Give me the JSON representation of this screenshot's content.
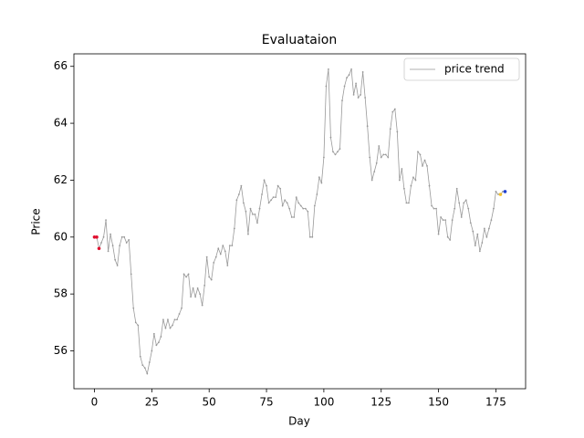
{
  "chart_data": {
    "type": "line",
    "title": "Evaluataion",
    "x_label": "Day",
    "y_label": "Price",
    "x": [
      0,
      1,
      2,
      3,
      4,
      5,
      6,
      7,
      8,
      9,
      10,
      11,
      12,
      13,
      14,
      15,
      16,
      17,
      18,
      19,
      20,
      21,
      22,
      23,
      24,
      25,
      26,
      27,
      28,
      29,
      30,
      31,
      32,
      33,
      34,
      35,
      36,
      37,
      38,
      39,
      40,
      41,
      42,
      43,
      44,
      45,
      46,
      47,
      48,
      49,
      50,
      51,
      52,
      53,
      54,
      55,
      56,
      57,
      58,
      59,
      60,
      61,
      62,
      63,
      64,
      65,
      66,
      67,
      68,
      69,
      70,
      71,
      72,
      73,
      74,
      75,
      76,
      77,
      78,
      79,
      80,
      81,
      82,
      83,
      84,
      85,
      86,
      87,
      88,
      89,
      90,
      91,
      92,
      93,
      94,
      95,
      96,
      97,
      98,
      99,
      100,
      101,
      102,
      103,
      104,
      105,
      106,
      107,
      108,
      109,
      110,
      111,
      112,
      113,
      114,
      115,
      116,
      117,
      118,
      119,
      120,
      121,
      122,
      123,
      124,
      125,
      126,
      127,
      128,
      129,
      130,
      131,
      132,
      133,
      134,
      135,
      136,
      137,
      138,
      139,
      140,
      141,
      142,
      143,
      144,
      145,
      146,
      147,
      148,
      149,
      150,
      151,
      152,
      153,
      154,
      155,
      156,
      157,
      158,
      159,
      160,
      161,
      162,
      163,
      164,
      165,
      166,
      167,
      168,
      169,
      170,
      171,
      172,
      173,
      174,
      175,
      176,
      177,
      178,
      179
    ],
    "series": [
      {
        "name": "price trend",
        "color": "#999999",
        "values": [
          60.0,
          60.0,
          59.6,
          59.8,
          60.0,
          60.6,
          59.5,
          60.1,
          59.7,
          59.2,
          59.0,
          59.7,
          60.0,
          60.0,
          59.8,
          59.9,
          58.7,
          57.5,
          57.0,
          56.9,
          55.8,
          55.5,
          55.4,
          55.2,
          55.6,
          56.0,
          56.6,
          56.2,
          56.3,
          56.5,
          57.1,
          56.8,
          57.1,
          56.8,
          56.9,
          57.1,
          57.1,
          57.3,
          57.5,
          58.7,
          58.6,
          58.7,
          57.9,
          58.2,
          57.9,
          58.2,
          58.0,
          57.6,
          58.3,
          59.3,
          58.6,
          58.5,
          59.1,
          59.3,
          59.6,
          59.4,
          59.7,
          59.5,
          59.0,
          59.7,
          59.7,
          60.3,
          61.3,
          61.5,
          61.8,
          61.2,
          60.9,
          60.1,
          61.0,
          60.8,
          60.8,
          60.5,
          61.0,
          61.5,
          62.0,
          61.8,
          61.2,
          61.3,
          61.4,
          61.4,
          61.8,
          61.7,
          61.1,
          61.3,
          61.2,
          61.0,
          60.7,
          60.7,
          61.4,
          61.2,
          61.1,
          61.0,
          61.0,
          60.9,
          60.0,
          60.0,
          61.1,
          61.5,
          62.1,
          61.9,
          62.8,
          65.3,
          65.9,
          63.5,
          63.0,
          62.9,
          63.0,
          63.1,
          64.8,
          65.3,
          65.6,
          65.7,
          65.9,
          65.0,
          65.4,
          64.9,
          65.0,
          65.8,
          64.9,
          63.9,
          62.8,
          62.0,
          62.3,
          62.6,
          63.2,
          62.8,
          62.9,
          62.9,
          62.8,
          63.8,
          64.4,
          64.5,
          63.7,
          62.0,
          62.4,
          61.7,
          61.2,
          61.2,
          61.8,
          62.1,
          62.0,
          63.0,
          62.9,
          62.5,
          62.7,
          62.5,
          61.8,
          61.1,
          61.0,
          61.0,
          60.1,
          60.7,
          60.6,
          60.6,
          60.0,
          59.9,
          60.6,
          61.0,
          61.7,
          61.2,
          60.7,
          61.2,
          61.3,
          61.0,
          60.5,
          60.2,
          59.7,
          60.1,
          59.5,
          59.8,
          60.3,
          60.0,
          60.3,
          60.6,
          61.0,
          61.6,
          61.5,
          61.5,
          61.6,
          61.6
        ]
      }
    ],
    "highlights": [
      {
        "index": 0,
        "color": "#e0102f"
      },
      {
        "index": 1,
        "color": "#e0102f"
      },
      {
        "index": 2,
        "color": "#e0102f"
      },
      {
        "index": 177,
        "color": "#f2c12e"
      },
      {
        "index": 179,
        "color": "#2040d0"
      }
    ],
    "xlim": [
      -8.95,
      187.95
    ],
    "ylim": [
      54.67,
      66.44
    ],
    "xticks": [
      0,
      25,
      50,
      75,
      100,
      125,
      150,
      175
    ],
    "yticks": [
      56,
      58,
      60,
      62,
      64,
      66
    ],
    "legend": "upper right",
    "grid": false
  }
}
